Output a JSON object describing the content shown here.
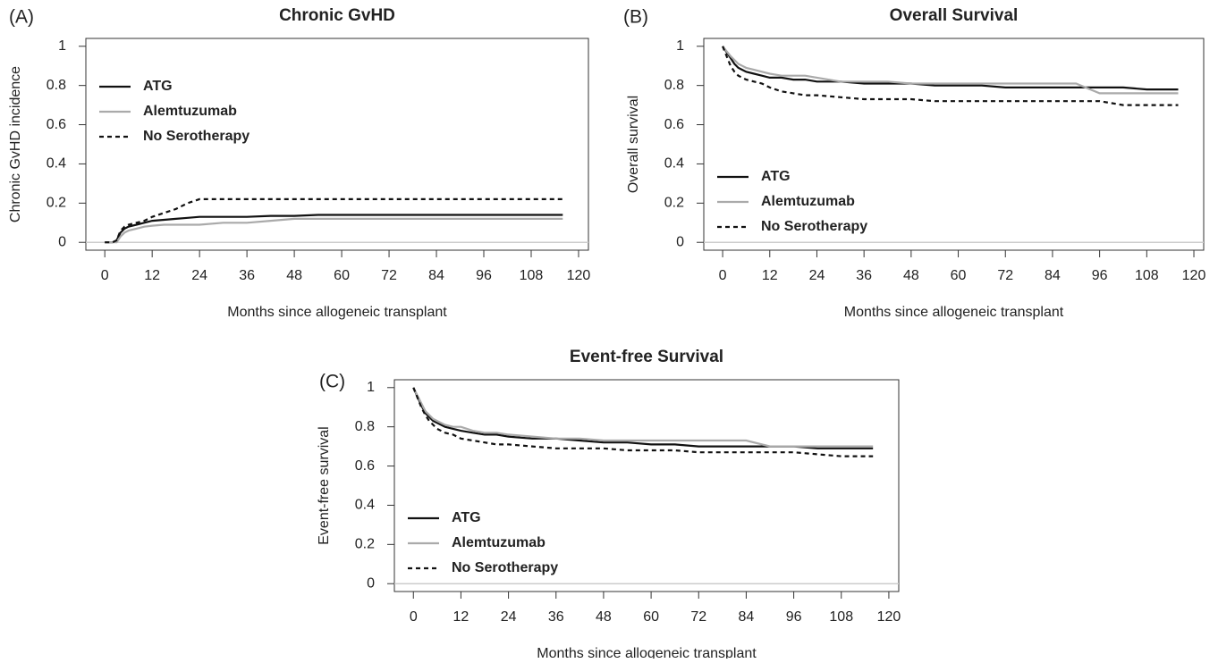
{
  "chart_data": [
    {
      "type": "line",
      "panel": "(A)",
      "title": "Chronic GvHD",
      "xlabel": "Months since allogeneic transplant",
      "ylabel": "Chronic GvHD incidence",
      "x": [
        0,
        2,
        3,
        4,
        5,
        6,
        8,
        10,
        12,
        15,
        18,
        21,
        24,
        30,
        36,
        42,
        48,
        54,
        60,
        66,
        72,
        78,
        84,
        90,
        96,
        102,
        108,
        116
      ],
      "series": [
        {
          "name": "ATG",
          "color": "#111111",
          "dash": false,
          "values": [
            0,
            0,
            0.01,
            0.05,
            0.07,
            0.08,
            0.09,
            0.1,
            0.11,
            0.115,
            0.12,
            0.125,
            0.13,
            0.13,
            0.13,
            0.135,
            0.135,
            0.14,
            0.14,
            0.14,
            0.14,
            0.14,
            0.14,
            0.14,
            0.14,
            0.14,
            0.14,
            0.14
          ]
        },
        {
          "name": "Alemtuzumab",
          "color": "#aaaaaa",
          "dash": false,
          "values": [
            0,
            0,
            0,
            0.03,
            0.05,
            0.06,
            0.07,
            0.08,
            0.085,
            0.09,
            0.09,
            0.09,
            0.09,
            0.1,
            0.1,
            0.11,
            0.12,
            0.12,
            0.12,
            0.12,
            0.12,
            0.12,
            0.12,
            0.12,
            0.12,
            0.12,
            0.12,
            0.12
          ]
        },
        {
          "name": "No Serotherapy",
          "color": "#111111",
          "dash": true,
          "values": [
            0,
            0,
            0.01,
            0.06,
            0.08,
            0.09,
            0.1,
            0.11,
            0.13,
            0.15,
            0.17,
            0.2,
            0.22,
            0.22,
            0.22,
            0.22,
            0.22,
            0.22,
            0.22,
            0.22,
            0.22,
            0.22,
            0.22,
            0.22,
            0.22,
            0.22,
            0.22,
            0.22
          ]
        }
      ],
      "xlim": [
        -4.8,
        122.5
      ],
      "xticks": [
        0,
        12,
        24,
        36,
        48,
        60,
        72,
        84,
        96,
        108,
        120
      ],
      "ylim": [
        -0.04,
        1.04
      ],
      "yticks": [
        0,
        0.2,
        0.4,
        0.6,
        0.8,
        1
      ],
      "hline": 0,
      "legend": "topleft"
    },
    {
      "type": "line",
      "panel": "(B)",
      "title": "Overall Survival",
      "xlabel": "Months since allogeneic transplant",
      "ylabel": "Overall survival",
      "x": [
        0,
        2,
        3,
        4,
        5,
        6,
        8,
        10,
        12,
        15,
        18,
        21,
        24,
        30,
        36,
        42,
        48,
        54,
        60,
        66,
        72,
        78,
        84,
        90,
        96,
        102,
        108,
        116
      ],
      "series": [
        {
          "name": "ATG",
          "color": "#111111",
          "dash": false,
          "values": [
            1,
            0.94,
            0.91,
            0.89,
            0.88,
            0.87,
            0.86,
            0.85,
            0.84,
            0.84,
            0.83,
            0.83,
            0.82,
            0.82,
            0.81,
            0.81,
            0.81,
            0.8,
            0.8,
            0.8,
            0.79,
            0.79,
            0.79,
            0.79,
            0.79,
            0.79,
            0.78,
            0.78
          ]
        },
        {
          "name": "Alemtuzumab",
          "color": "#aaaaaa",
          "dash": false,
          "values": [
            1,
            0.95,
            0.93,
            0.91,
            0.9,
            0.89,
            0.88,
            0.87,
            0.86,
            0.85,
            0.85,
            0.85,
            0.84,
            0.82,
            0.82,
            0.82,
            0.81,
            0.81,
            0.81,
            0.81,
            0.81,
            0.81,
            0.81,
            0.81,
            0.76,
            0.76,
            0.76,
            0.76
          ]
        },
        {
          "name": "No Serotherapy",
          "color": "#111111",
          "dash": true,
          "values": [
            1,
            0.9,
            0.87,
            0.85,
            0.84,
            0.83,
            0.82,
            0.81,
            0.79,
            0.77,
            0.76,
            0.75,
            0.75,
            0.74,
            0.73,
            0.73,
            0.73,
            0.72,
            0.72,
            0.72,
            0.72,
            0.72,
            0.72,
            0.72,
            0.72,
            0.7,
            0.7,
            0.7
          ]
        }
      ],
      "xlim": [
        -4.8,
        122.5
      ],
      "xticks": [
        0,
        12,
        24,
        36,
        48,
        60,
        72,
        84,
        96,
        108,
        120
      ],
      "ylim": [
        -0.04,
        1.04
      ],
      "yticks": [
        0,
        0.2,
        0.4,
        0.6,
        0.8,
        1
      ],
      "hline": 0,
      "legend": "bottomleft"
    },
    {
      "type": "line",
      "panel": "(C)",
      "title": "Event-free Survival",
      "xlabel": "Months since allogeneic transplant",
      "ylabel": "Event-free survival",
      "x": [
        0,
        2,
        3,
        4,
        5,
        6,
        8,
        10,
        12,
        15,
        18,
        21,
        24,
        30,
        36,
        42,
        48,
        54,
        60,
        66,
        72,
        78,
        84,
        90,
        96,
        102,
        108,
        116
      ],
      "series": [
        {
          "name": "ATG",
          "color": "#111111",
          "dash": false,
          "values": [
            1,
            0.91,
            0.87,
            0.85,
            0.83,
            0.82,
            0.8,
            0.79,
            0.78,
            0.77,
            0.76,
            0.76,
            0.75,
            0.74,
            0.74,
            0.73,
            0.72,
            0.72,
            0.71,
            0.71,
            0.7,
            0.7,
            0.7,
            0.7,
            0.7,
            0.69,
            0.69,
            0.69
          ]
        },
        {
          "name": "Alemtuzumab",
          "color": "#aaaaaa",
          "dash": false,
          "values": [
            1,
            0.92,
            0.88,
            0.86,
            0.84,
            0.83,
            0.81,
            0.8,
            0.8,
            0.78,
            0.77,
            0.77,
            0.76,
            0.75,
            0.74,
            0.74,
            0.73,
            0.73,
            0.73,
            0.73,
            0.73,
            0.73,
            0.73,
            0.7,
            0.7,
            0.7,
            0.7,
            0.7
          ]
        },
        {
          "name": "No Serotherapy",
          "color": "#111111",
          "dash": true,
          "values": [
            1,
            0.9,
            0.86,
            0.83,
            0.81,
            0.79,
            0.77,
            0.76,
            0.74,
            0.73,
            0.72,
            0.71,
            0.71,
            0.7,
            0.69,
            0.69,
            0.69,
            0.68,
            0.68,
            0.68,
            0.67,
            0.67,
            0.67,
            0.67,
            0.67,
            0.66,
            0.65,
            0.65
          ]
        }
      ],
      "xlim": [
        -4.8,
        122.5
      ],
      "xticks": [
        0,
        12,
        24,
        36,
        48,
        60,
        72,
        84,
        96,
        108,
        120
      ],
      "ylim": [
        -0.04,
        1.04
      ],
      "yticks": [
        0,
        0.2,
        0.4,
        0.6,
        0.8,
        1
      ],
      "hline": 0,
      "legend": "bottomleft"
    }
  ]
}
